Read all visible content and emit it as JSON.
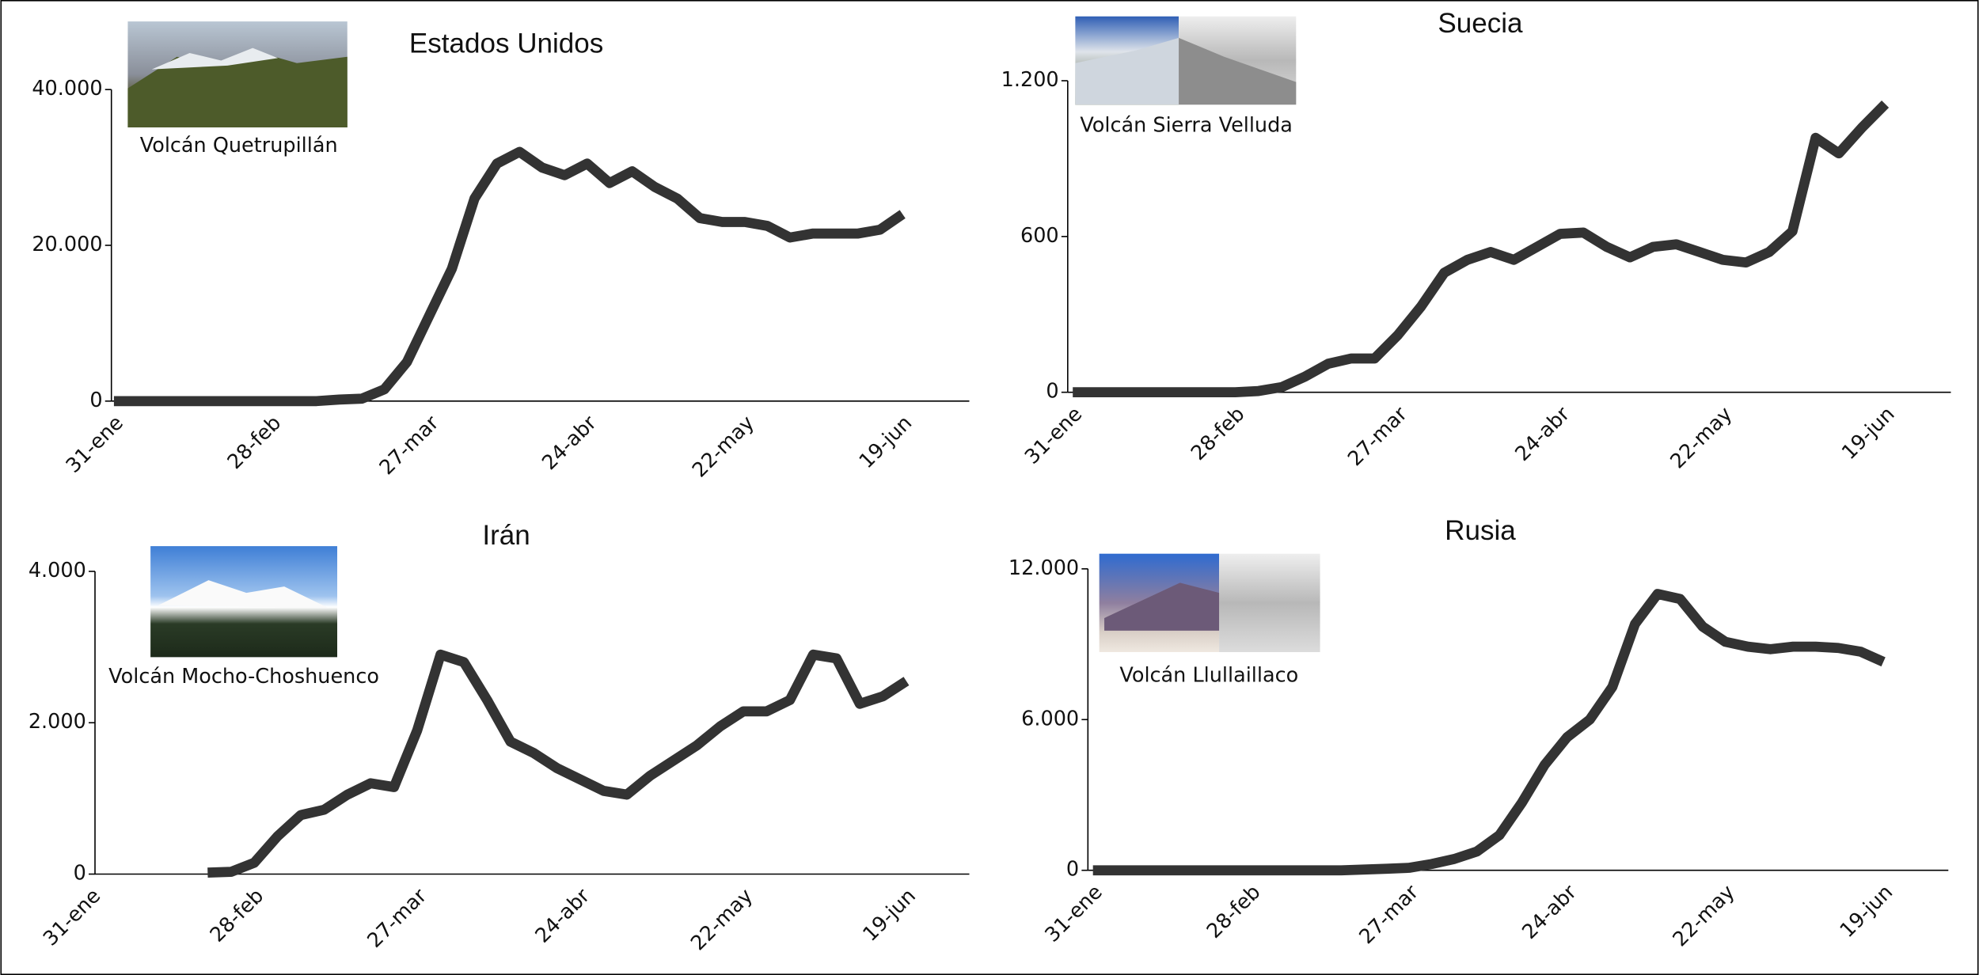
{
  "chart_data": [
    {
      "type": "line",
      "title": "Estados Unidos",
      "image_caption": "Volcán Quetrupillán",
      "color": "#333333",
      "categories": [
        "31-ene",
        null,
        null,
        null,
        null,
        null,
        null,
        "28-feb",
        null,
        null,
        null,
        null,
        null,
        null,
        "27-mar",
        null,
        null,
        null,
        null,
        null,
        null,
        "24-abr",
        null,
        null,
        null,
        null,
        null,
        null,
        "22-may",
        null,
        null,
        null,
        null,
        null,
        null,
        "19-jun",
        null
      ],
      "values": [
        0,
        0,
        0,
        0,
        0,
        0,
        0,
        0,
        0,
        0,
        200,
        300,
        1500,
        5000,
        11000,
        17000,
        26000,
        30500,
        32000,
        30000,
        29000,
        30500,
        28000,
        29500,
        27500,
        26000,
        23500,
        23000,
        23000,
        22500,
        21000,
        21500,
        21500,
        21500,
        22000,
        24000,
        null
      ],
      "ylim": [
        0,
        40000
      ],
      "yticks": [
        0,
        {
          "value": 20000,
          "label": "20.000"
        },
        {
          "value": 40000,
          "label": "40.000"
        }
      ]
    },
    {
      "type": "line",
      "title": "Suecia",
      "image_caption": "Volcán Sierra Velluda",
      "color": "#333333",
      "categories": [
        "31-ene",
        null,
        null,
        null,
        null,
        null,
        null,
        "28-feb",
        null,
        null,
        null,
        null,
        null,
        null,
        "27-mar",
        null,
        null,
        null,
        null,
        null,
        null,
        "24-abr",
        null,
        null,
        null,
        null,
        null,
        null,
        "22-may",
        null,
        null,
        null,
        null,
        null,
        null,
        "19-jun",
        null
      ],
      "values": [
        0,
        0,
        0,
        0,
        0,
        0,
        0,
        0,
        5,
        20,
        60,
        110,
        130,
        130,
        220,
        330,
        460,
        510,
        540,
        510,
        560,
        610,
        615,
        560,
        520,
        560,
        570,
        540,
        510,
        500,
        540,
        620,
        980,
        920,
        1020,
        1110,
        null
      ],
      "ylim": [
        0,
        1200
      ],
      "yticks": [
        0,
        600,
        {
          "value": 1200,
          "label": "1.200"
        }
      ]
    },
    {
      "type": "line",
      "title": "Irán",
      "image_caption": "Volcán Mocho-Choshuenco",
      "color": "#333333",
      "categories": [
        "31-ene",
        null,
        null,
        null,
        null,
        null,
        null,
        "28-feb",
        null,
        null,
        null,
        null,
        null,
        null,
        "27-mar",
        null,
        null,
        null,
        null,
        null,
        null,
        "24-abr",
        null,
        null,
        null,
        null,
        null,
        null,
        "22-may",
        null,
        null,
        null,
        null,
        null,
        null,
        "19-jun",
        null
      ],
      "values": [
        null,
        null,
        null,
        null,
        null,
        20,
        30,
        150,
        500,
        780,
        850,
        1050,
        1200,
        1150,
        1900,
        2900,
        2800,
        2300,
        1750,
        1600,
        1400,
        1250,
        1100,
        1050,
        1300,
        1500,
        1700,
        1950,
        2150,
        2150,
        2300,
        2900,
        2850,
        2250,
        2350,
        2550,
        null
      ],
      "ylim": [
        0,
        4000
      ],
      "yticks": [
        0,
        {
          "value": 2000,
          "label": "2.000"
        },
        {
          "value": 4000,
          "label": "4.000"
        }
      ]
    },
    {
      "type": "line",
      "title": "Rusia",
      "image_caption": "Volcán Llullaillaco",
      "color": "#333333",
      "categories": [
        "31-ene",
        null,
        null,
        null,
        null,
        null,
        null,
        "28-feb",
        null,
        null,
        null,
        null,
        null,
        null,
        "27-mar",
        null,
        null,
        null,
        null,
        null,
        null,
        "24-abr",
        null,
        null,
        null,
        null,
        null,
        null,
        "22-may",
        null,
        null,
        null,
        null,
        null,
        null,
        "19-jun",
        null
      ],
      "values": [
        0,
        0,
        0,
        0,
        0,
        0,
        0,
        0,
        0,
        0,
        0,
        0,
        30,
        60,
        100,
        250,
        450,
        750,
        1400,
        2700,
        4200,
        5300,
        6000,
        7300,
        9800,
        11000,
        10800,
        9700,
        9100,
        8900,
        8800,
        8900,
        8900,
        8850,
        8700,
        8300,
        null
      ],
      "ylim": [
        0,
        12000
      ],
      "yticks": [
        0,
        {
          "value": 6000,
          "label": "6.000"
        },
        {
          "value": 12000,
          "label": "12.000"
        }
      ]
    }
  ]
}
